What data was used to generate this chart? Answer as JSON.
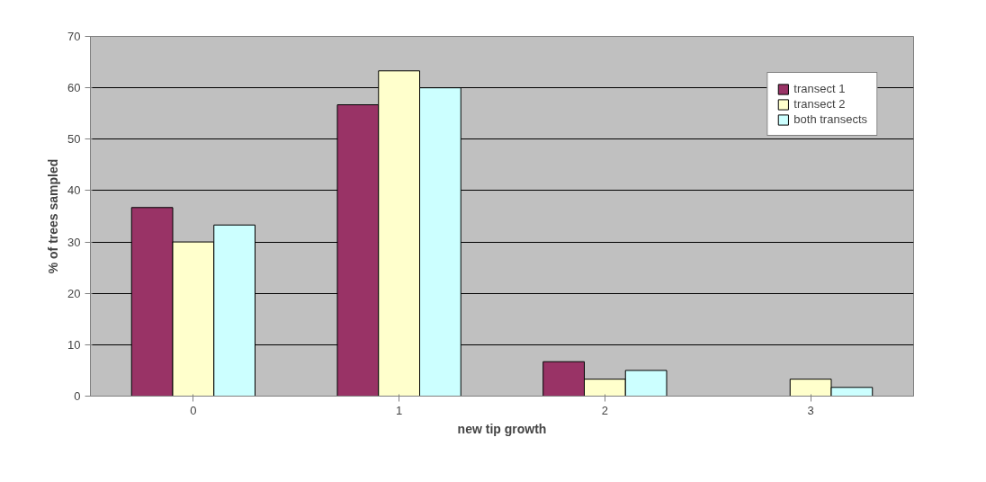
{
  "chart_data": {
    "type": "bar",
    "xlabel": "new tip growth",
    "ylabel": "% of trees sampled",
    "categories": [
      "0",
      "1",
      "2",
      "3"
    ],
    "series": [
      {
        "name": "transect 1",
        "color": "#993366",
        "values": [
          36.7,
          56.7,
          6.7,
          0
        ]
      },
      {
        "name": "transect 2",
        "color": "#ffffcc",
        "values": [
          30,
          63.3,
          3.3,
          3.3
        ]
      },
      {
        "name": "both transects",
        "color": "#ccffff",
        "values": [
          33.3,
          60,
          5,
          1.7
        ]
      }
    ],
    "ylim": [
      0,
      70
    ],
    "yticks": [
      0,
      10,
      20,
      30,
      40,
      50,
      60,
      70
    ],
    "grid": "y",
    "legend": "top right"
  }
}
